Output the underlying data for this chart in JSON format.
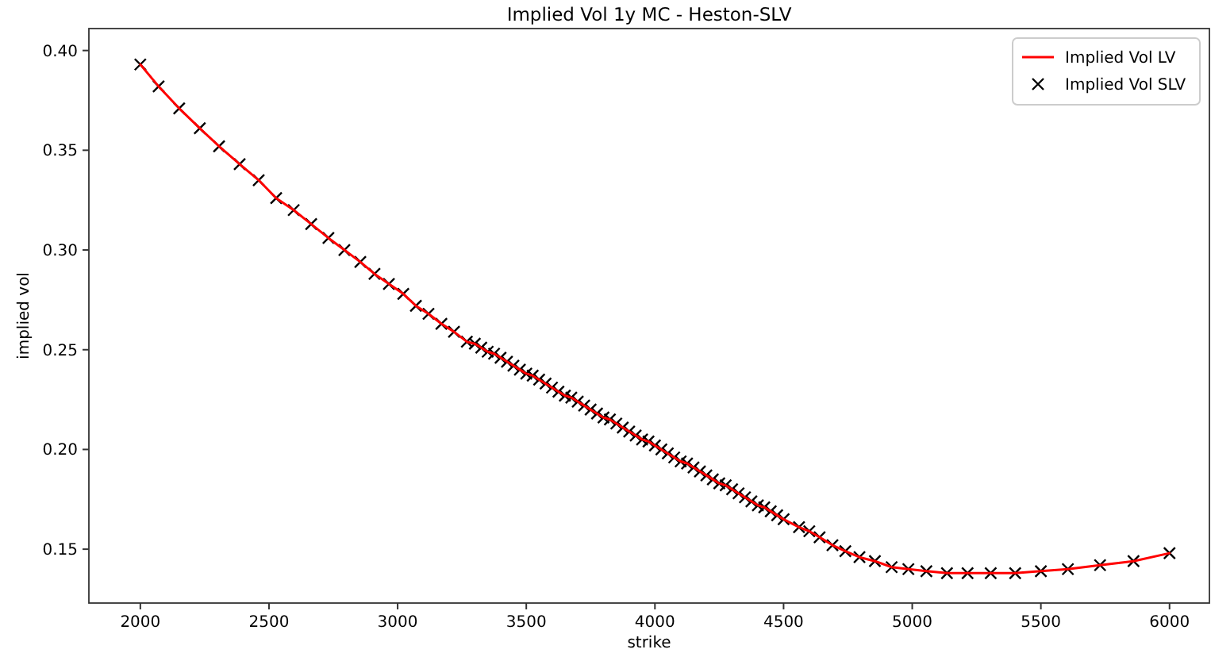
{
  "chart_data": {
    "type": "line",
    "title": "Implied Vol 1y MC - Heston-SLV",
    "xlabel": "strike",
    "ylabel": "implied vol",
    "legend": "top right",
    "xlim": [
      1800,
      6155
    ],
    "ylim": [
      0.123,
      0.411
    ],
    "xticks": [
      2000,
      2500,
      3000,
      3500,
      4000,
      4500,
      5000,
      5500,
      6000
    ],
    "yticks": [
      0.15,
      {
        "value": 0.2,
        "label": "0.20"
      },
      0.25,
      {
        "value": 0.3,
        "label": "0.30"
      },
      0.35,
      {
        "value": 0.4,
        "label": "0.40"
      }
    ],
    "x": [
      2000,
      2071,
      2151,
      2231,
      2306,
      2386,
      2460,
      2528,
      2596,
      2664,
      2731,
      2793,
      2855,
      2910,
      2966,
      3022,
      3071,
      3120,
      3170,
      3219,
      3269,
      3300,
      3325,
      3350,
      3375,
      3400,
      3425,
      3450,
      3475,
      3500,
      3525,
      3550,
      3575,
      3600,
      3625,
      3650,
      3675,
      3700,
      3725,
      3750,
      3775,
      3800,
      3825,
      3850,
      3875,
      3900,
      3925,
      3950,
      3975,
      4000,
      4025,
      4050,
      4075,
      4100,
      4125,
      4150,
      4175,
      4200,
      4225,
      4250,
      4275,
      4300,
      4325,
      4350,
      4375,
      4400,
      4425,
      4450,
      4475,
      4500,
      4560,
      4600,
      4640,
      4690,
      4740,
      4795,
      4855,
      4920,
      4985,
      5055,
      5135,
      5215,
      5305,
      5400,
      5500,
      5605,
      5730,
      5860,
      6000
    ],
    "series": [
      {
        "name": "Implied Vol LV",
        "color": "#ff0000",
        "marker": "none",
        "values": [
          0.393,
          0.382,
          0.371,
          0.361,
          0.352,
          0.343,
          0.335,
          0.326,
          0.32,
          0.313,
          0.306,
          0.3,
          0.294,
          0.288,
          0.283,
          0.278,
          0.272,
          0.268,
          0.263,
          0.259,
          0.254,
          0.253,
          0.251,
          0.249,
          0.248,
          0.246,
          0.244,
          0.242,
          0.24,
          0.238,
          0.237,
          0.235,
          0.233,
          0.231,
          0.229,
          0.227,
          0.226,
          0.224,
          0.222,
          0.22,
          0.218,
          0.216,
          0.215,
          0.213,
          0.211,
          0.209,
          0.207,
          0.205,
          0.204,
          0.202,
          0.2,
          0.198,
          0.196,
          0.194,
          0.193,
          0.191,
          0.189,
          0.187,
          0.185,
          0.183,
          0.182,
          0.18,
          0.178,
          0.176,
          0.174,
          0.172,
          0.171,
          0.169,
          0.167,
          0.165,
          0.161,
          0.159,
          0.156,
          0.152,
          0.149,
          0.146,
          0.144,
          0.141,
          0.14,
          0.139,
          0.138,
          0.138,
          0.138,
          0.138,
          0.139,
          0.14,
          0.142,
          0.144,
          0.148
        ]
      },
      {
        "name": "Implied Vol SLV",
        "type": "scatter",
        "color": "#000000",
        "marker": "cross",
        "values": [
          0.393,
          0.382,
          0.371,
          0.361,
          0.352,
          0.343,
          0.335,
          0.326,
          0.32,
          0.313,
          0.306,
          0.3,
          0.294,
          0.288,
          0.283,
          0.278,
          0.272,
          0.268,
          0.263,
          0.259,
          0.254,
          0.253,
          0.251,
          0.249,
          0.248,
          0.246,
          0.244,
          0.242,
          0.24,
          0.238,
          0.237,
          0.235,
          0.233,
          0.231,
          0.229,
          0.227,
          0.226,
          0.224,
          0.222,
          0.22,
          0.218,
          0.216,
          0.215,
          0.213,
          0.211,
          0.209,
          0.207,
          0.205,
          0.204,
          0.202,
          0.2,
          0.198,
          0.196,
          0.194,
          0.193,
          0.191,
          0.189,
          0.187,
          0.185,
          0.183,
          0.182,
          0.18,
          0.178,
          0.176,
          0.174,
          0.172,
          0.171,
          0.169,
          0.167,
          0.165,
          0.161,
          0.159,
          0.156,
          0.152,
          0.149,
          0.146,
          0.144,
          0.141,
          0.14,
          0.139,
          0.138,
          0.138,
          0.138,
          0.138,
          0.139,
          0.14,
          0.142,
          0.144,
          0.148
        ]
      }
    ]
  }
}
